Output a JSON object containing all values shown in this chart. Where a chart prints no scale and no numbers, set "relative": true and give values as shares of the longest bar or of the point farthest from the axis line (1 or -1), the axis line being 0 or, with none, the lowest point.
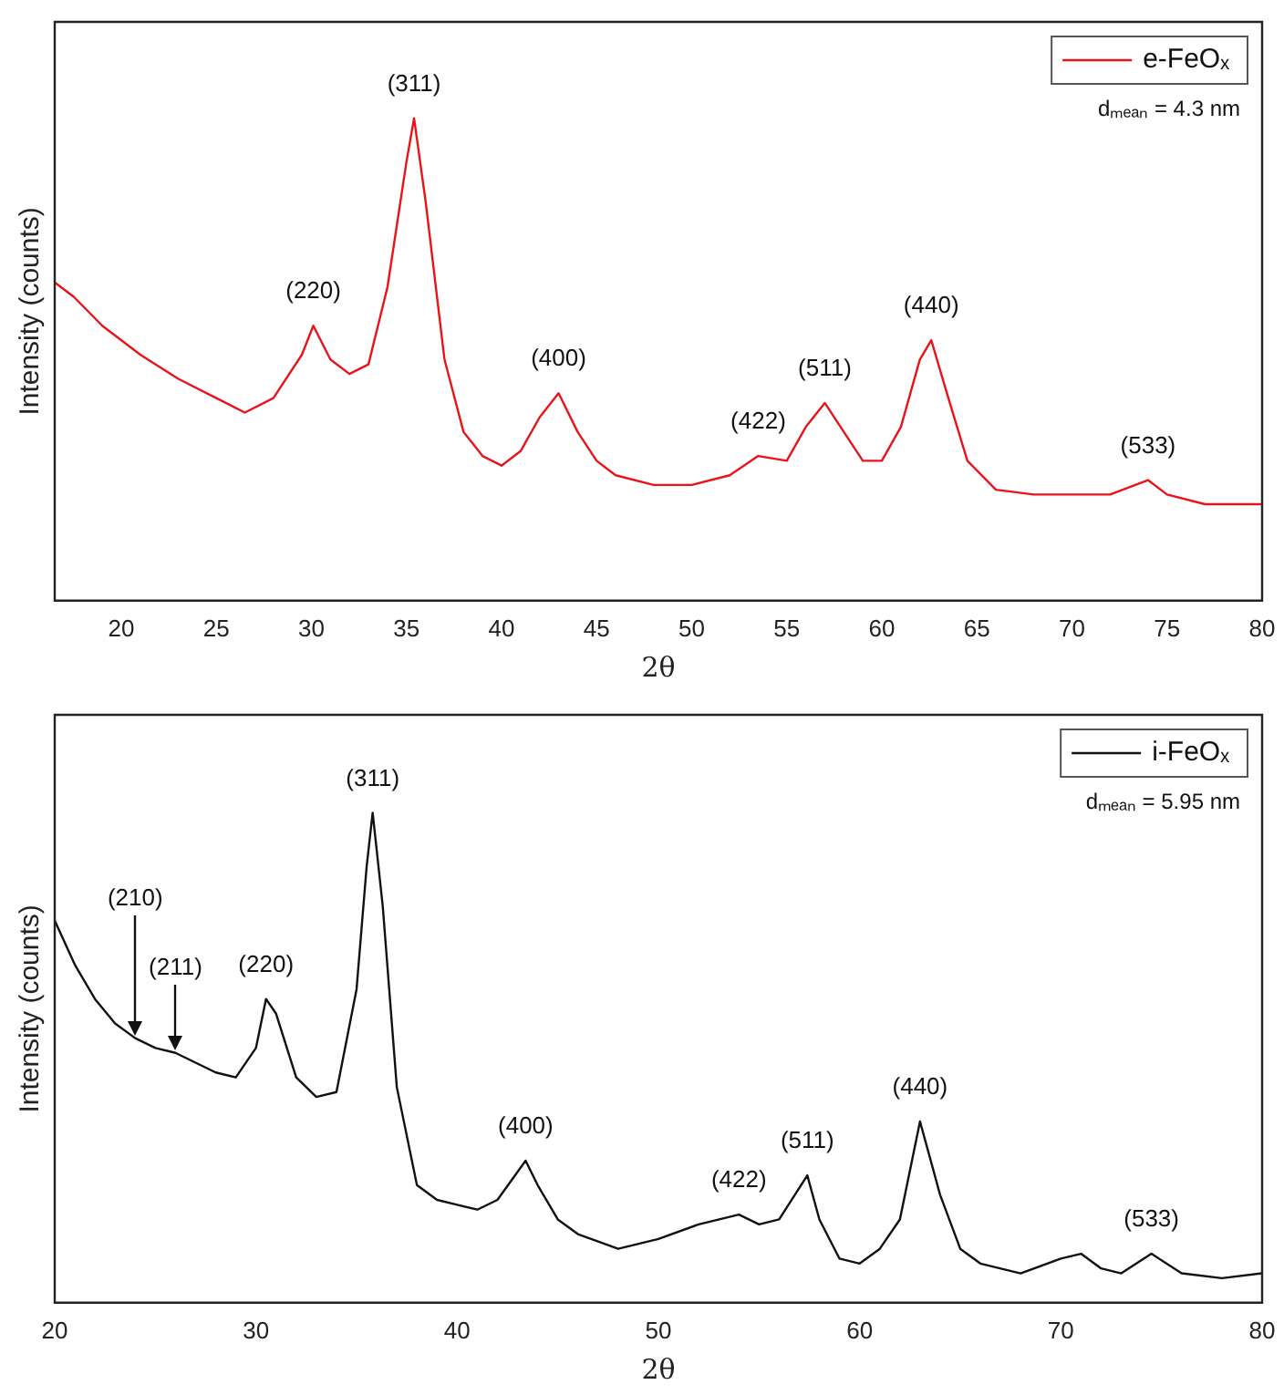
{
  "chart_data": [
    {
      "type": "line",
      "xlabel": "2θ",
      "ylabel": "Intensity (counts)",
      "relative": true,
      "grid": false,
      "legend": "top right",
      "marker": "none",
      "line_style": "solid",
      "xlim": [
        16.5,
        80
      ],
      "xticks": [
        20,
        25,
        30,
        35,
        40,
        45,
        50,
        55,
        60,
        65,
        70,
        75,
        80
      ],
      "x": [
        16.5,
        17.5,
        19,
        21,
        23,
        25,
        26.5,
        28,
        29.5,
        30.1,
        31,
        32,
        33,
        34,
        35,
        35.4,
        36,
        37,
        38,
        39,
        40,
        41,
        42,
        43,
        44,
        45,
        46,
        48,
        50,
        52,
        53.5,
        55,
        56,
        57,
        58,
        59,
        60,
        61,
        62,
        62.6,
        63.5,
        64.5,
        66,
        68,
        70,
        72,
        74,
        75,
        77,
        80
      ],
      "series": [
        {
          "name": "e-FeOₓ",
          "color": "#e8141a",
          "values": [
            0.66,
            0.63,
            0.57,
            0.51,
            0.46,
            0.42,
            0.39,
            0.42,
            0.51,
            0.57,
            0.5,
            0.47,
            0.49,
            0.65,
            0.91,
            1,
            0.83,
            0.5,
            0.35,
            0.3,
            0.28,
            0.31,
            0.38,
            0.43,
            0.35,
            0.29,
            0.26,
            0.24,
            0.24,
            0.26,
            0.3,
            0.29,
            0.36,
            0.41,
            0.35,
            0.29,
            0.29,
            0.36,
            0.5,
            0.54,
            0.42,
            0.29,
            0.23,
            0.22,
            0.22,
            0.22,
            0.25,
            0.22,
            0.2,
            0.2
          ]
        }
      ],
      "annotations": [
        {
          "text": "(220)",
          "x": 30.1,
          "y": 0.57
        },
        {
          "text": "(311)",
          "x": 35.4,
          "y": 1
        },
        {
          "text": "(400)",
          "x": 43,
          "y": 0.43
        },
        {
          "text": "(422)",
          "x": 53.5,
          "y": 0.3
        },
        {
          "text": "(511)",
          "x": 57,
          "y": 0.41
        },
        {
          "text": "(440)",
          "x": 62.6,
          "y": 0.54
        },
        {
          "text": "(533)",
          "x": 74,
          "y": 0.25
        },
        "dₘₑₐₙ = 4.3 nm"
      ]
    },
    {
      "type": "line",
      "xlabel": "2θ",
      "ylabel": "Intensity (counts)",
      "relative": true,
      "grid": false,
      "legend": "top right",
      "marker": "none",
      "line_style": "solid",
      "xlim": [
        20,
        80
      ],
      "xticks": [
        20,
        30,
        40,
        50,
        60,
        70,
        80
      ],
      "x": [
        20,
        21,
        22,
        23,
        24,
        25,
        26,
        27,
        28,
        29,
        30,
        30.5,
        31,
        32,
        33,
        34,
        35,
        35.5,
        35.8,
        36.3,
        37,
        38,
        39,
        40,
        41,
        42,
        43.4,
        44,
        45,
        46,
        48,
        50,
        52,
        54,
        55,
        56,
        57.4,
        58,
        59,
        60,
        61,
        62,
        63,
        64,
        65,
        66,
        68,
        70,
        71,
        72,
        73,
        74.5,
        76,
        78,
        80
      ],
      "series": [
        {
          "name": "i-FeOₓ",
          "color": "#111111",
          "values": [
            0.78,
            0.69,
            0.62,
            0.57,
            0.54,
            0.52,
            0.51,
            0.49,
            0.47,
            0.46,
            0.52,
            0.62,
            0.59,
            0.46,
            0.42,
            0.43,
            0.64,
            0.89,
            1,
            0.81,
            0.44,
            0.24,
            0.21,
            0.2,
            0.19,
            0.21,
            0.29,
            0.24,
            0.17,
            0.14,
            0.11,
            0.13,
            0.16,
            0.18,
            0.16,
            0.17,
            0.26,
            0.17,
            0.09,
            0.08,
            0.11,
            0.17,
            0.37,
            0.22,
            0.11,
            0.08,
            0.06,
            0.09,
            0.1,
            0.07,
            0.06,
            0.1,
            0.06,
            0.05,
            0.06
          ]
        }
      ],
      "annotations": [
        {
          "text": "(210)",
          "x": 24,
          "y": 0.54
        },
        {
          "text": "(211)",
          "x": 26,
          "y": 0.51
        },
        {
          "text": "(220)",
          "x": 30.5,
          "y": 0.62
        },
        {
          "text": "(311)",
          "x": 35.8,
          "y": 1
        },
        {
          "text": "(400)",
          "x": 43.4,
          "y": 0.29
        },
        {
          "text": "(422)",
          "x": 54,
          "y": 0.18
        },
        {
          "text": "(511)",
          "x": 57.4,
          "y": 0.26
        },
        {
          "text": "(440)",
          "x": 63,
          "y": 0.37
        },
        {
          "text": "(533)",
          "x": 74.5,
          "y": 0.1
        },
        "dₘₑₐₙ = 5.95 nm"
      ]
    }
  ]
}
